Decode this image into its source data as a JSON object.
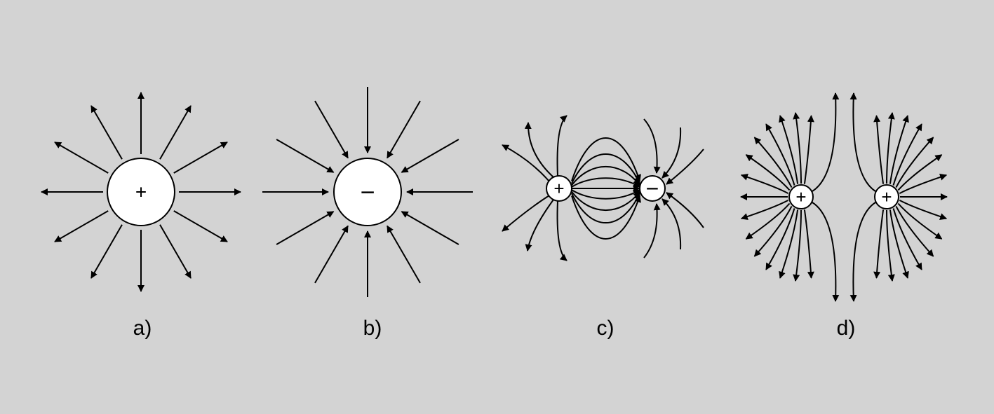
{
  "panels": [
    {
      "id": "a",
      "label": "a)",
      "charges": [
        "+"
      ],
      "field_direction": "outward"
    },
    {
      "id": "b",
      "label": "b)",
      "charges": [
        "−"
      ],
      "field_direction": "inward"
    },
    {
      "id": "c",
      "label": "c)",
      "charges": [
        "+",
        "−"
      ],
      "field_direction": "dipole"
    },
    {
      "id": "d",
      "label": "d)",
      "charges": [
        "+",
        "+"
      ],
      "field_direction": "repulsive"
    }
  ],
  "colors": {
    "background": "#d3d3d3",
    "line": "#000000",
    "charge_fill": "#ffffff"
  }
}
